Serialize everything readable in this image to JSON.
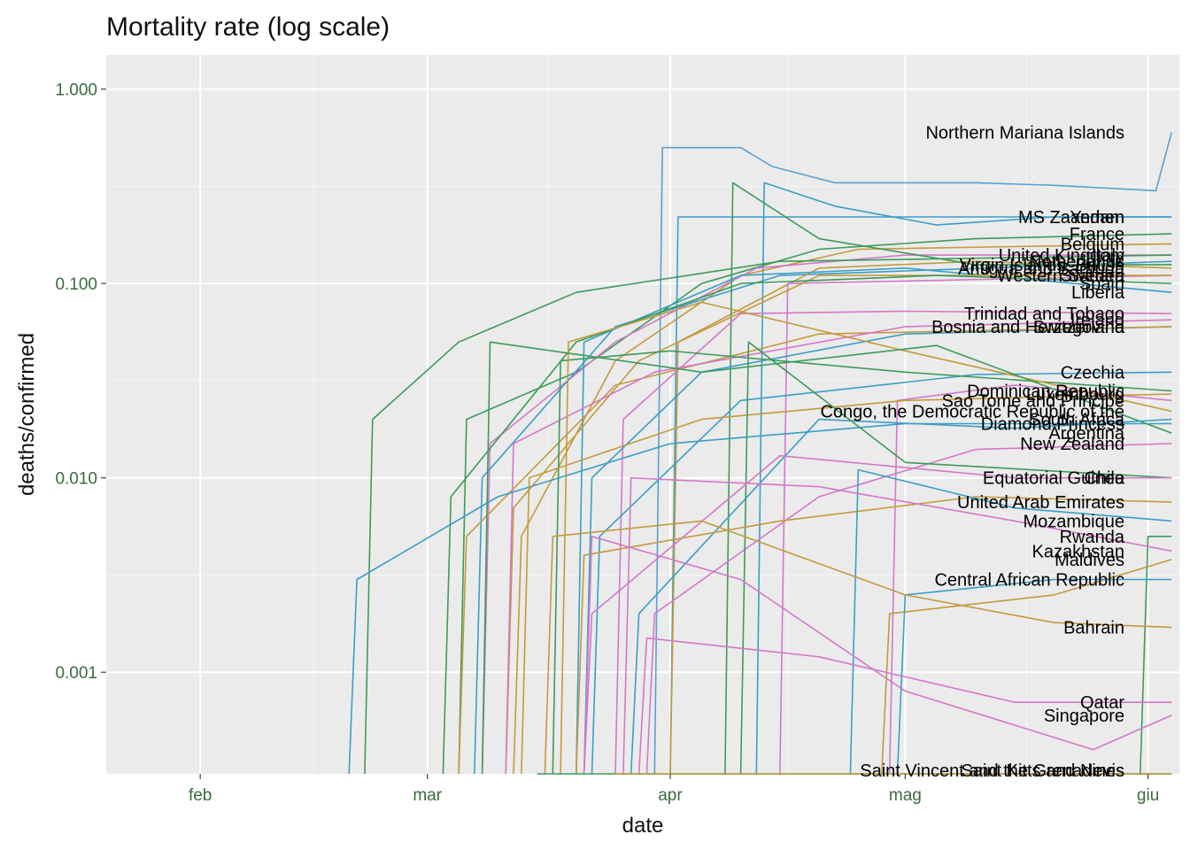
{
  "chart_data": {
    "type": "line",
    "title": "Mortality rate (log scale)",
    "xlabel": "date",
    "ylabel": "deaths/confirmed",
    "y_scale": "log10",
    "ylim": [
      0.0003,
      1.5
    ],
    "xlim": [
      "2020-01-20",
      "2020-06-05"
    ],
    "grid": true,
    "legend": "none",
    "x_ticks": [
      {
        "date": "2020-02-01",
        "label": "feb"
      },
      {
        "date": "2020-03-01",
        "label": "mar"
      },
      {
        "date": "2020-04-01",
        "label": "apr"
      },
      {
        "date": "2020-05-01",
        "label": "mag"
      },
      {
        "date": "2020-06-01",
        "label": "giu"
      }
    ],
    "y_ticks": [
      {
        "value": 1,
        "label": "1.000"
      },
      {
        "value": 0.1,
        "label": "0.100"
      },
      {
        "value": 0.01,
        "label": "0.010"
      },
      {
        "value": 0.001,
        "label": "0.001"
      }
    ],
    "palette": [
      "#c49a3c",
      "#3d9b5a",
      "#3a9ec7",
      "#d478c8",
      "#5aa0d0",
      "#c98e3a"
    ],
    "series": [
      {
        "name": "Northern Mariana Islands",
        "color": "#5aa0d0",
        "points": [
          [
            "2020-03-30",
            0.0003
          ],
          [
            "2020-03-31",
            0.5
          ],
          [
            "2020-04-10",
            0.5
          ],
          [
            "2020-04-14",
            0.4
          ],
          [
            "2020-04-22",
            0.33
          ],
          [
            "2020-05-10",
            0.33
          ],
          [
            "2020-05-20",
            0.32
          ],
          [
            "2020-06-02",
            0.3
          ],
          [
            "2020-06-04",
            0.6
          ]
        ]
      },
      {
        "name": "Yemen",
        "color": "#3a9ec7",
        "points": [
          [
            "2020-04-12",
            0.0003
          ],
          [
            "2020-04-13",
            0.33
          ],
          [
            "2020-04-22",
            0.25
          ],
          [
            "2020-05-05",
            0.2
          ],
          [
            "2020-05-20",
            0.22
          ],
          [
            "2020-06-04",
            0.22
          ]
        ]
      },
      {
        "name": "MS Zaandam",
        "color": "#3a9ec7",
        "points": [
          [
            "2020-04-01",
            0.0003
          ],
          [
            "2020-04-02",
            0.22
          ],
          [
            "2020-06-04",
            0.22
          ]
        ]
      },
      {
        "name": "France",
        "color": "#3d9b5a",
        "points": [
          [
            "2020-03-05",
            0.0003
          ],
          [
            "2020-03-06",
            0.02
          ],
          [
            "2020-03-20",
            0.035
          ],
          [
            "2020-04-05",
            0.1
          ],
          [
            "2020-04-20",
            0.15
          ],
          [
            "2020-05-10",
            0.17
          ],
          [
            "2020-06-04",
            0.18
          ]
        ]
      },
      {
        "name": "Belgium",
        "color": "#c49a3c",
        "points": [
          [
            "2020-03-12",
            0.0003
          ],
          [
            "2020-03-13",
            0.005
          ],
          [
            "2020-03-25",
            0.04
          ],
          [
            "2020-04-10",
            0.11
          ],
          [
            "2020-04-25",
            0.15
          ],
          [
            "2020-06-04",
            0.16
          ]
        ]
      },
      {
        "name": "United Kingdom",
        "color": "#d478c8",
        "points": [
          [
            "2020-03-08",
            0.0003
          ],
          [
            "2020-03-09",
            0.015
          ],
          [
            "2020-03-25",
            0.05
          ],
          [
            "2020-04-12",
            0.12
          ],
          [
            "2020-05-01",
            0.14
          ],
          [
            "2020-06-04",
            0.14
          ]
        ]
      },
      {
        "name": "Netherlands",
        "color": "#3a9ec7",
        "points": [
          [
            "2020-03-07",
            0.0003
          ],
          [
            "2020-03-08",
            0.01
          ],
          [
            "2020-03-25",
            0.06
          ],
          [
            "2020-04-15",
            0.11
          ],
          [
            "2020-06-04",
            0.13
          ]
        ]
      },
      {
        "name": "Italy",
        "color": "#3d9b5a",
        "points": [
          [
            "2020-02-22",
            0.0003
          ],
          [
            "2020-02-23",
            0.02
          ],
          [
            "2020-03-05",
            0.05
          ],
          [
            "2020-03-20",
            0.09
          ],
          [
            "2020-04-15",
            0.13
          ],
          [
            "2020-06-04",
            0.14
          ]
        ]
      },
      {
        "name": "Antigua and Barbuda",
        "color": "#c49a3c",
        "points": [
          [
            "2020-04-01",
            0.0003
          ],
          [
            "2020-04-02",
            0.05
          ],
          [
            "2020-04-20",
            0.12
          ],
          [
            "2020-05-10",
            0.13
          ],
          [
            "2020-06-04",
            0.12
          ]
        ]
      },
      {
        "name": "Western Sahara",
        "color": "#d478c8",
        "points": [
          [
            "2020-04-15",
            0.0003
          ],
          [
            "2020-04-16",
            0.1
          ],
          [
            "2020-06-04",
            0.11
          ]
        ]
      },
      {
        "name": "Liberia",
        "color": "#3a9ec7",
        "points": [
          [
            "2020-03-20",
            0.0003
          ],
          [
            "2020-03-21",
            0.05
          ],
          [
            "2020-04-10",
            0.11
          ],
          [
            "2020-05-01",
            0.12
          ],
          [
            "2020-06-04",
            0.09
          ]
        ]
      },
      {
        "name": "Virgin Islands, British",
        "color": "#3d9b5a",
        "points": [
          [
            "2020-04-08",
            0.0003
          ],
          [
            "2020-04-09",
            0.33
          ],
          [
            "2020-04-20",
            0.17
          ],
          [
            "2020-05-10",
            0.125
          ],
          [
            "2020-06-04",
            0.125
          ]
        ]
      },
      {
        "name": "Sweden",
        "color": "#c49a3c",
        "points": [
          [
            "2020-03-11",
            0.0003
          ],
          [
            "2020-03-12",
            0.007
          ],
          [
            "2020-03-28",
            0.04
          ],
          [
            "2020-04-20",
            0.11
          ],
          [
            "2020-06-04",
            0.11
          ]
        ]
      },
      {
        "name": "Trinidad and Tobago",
        "color": "#d478c8",
        "points": [
          [
            "2020-03-25",
            0.0003
          ],
          [
            "2020-03-26",
            0.02
          ],
          [
            "2020-04-10",
            0.07
          ],
          [
            "2020-05-01",
            0.072
          ],
          [
            "2020-06-04",
            0.07
          ]
        ]
      },
      {
        "name": "Bosnia and Herzegovina",
        "color": "#3a9ec7",
        "points": [
          [
            "2020-03-21",
            0.0003
          ],
          [
            "2020-03-22",
            0.01
          ],
          [
            "2020-04-05",
            0.035
          ],
          [
            "2020-05-01",
            0.055
          ],
          [
            "2020-06-04",
            0.06
          ]
        ]
      },
      {
        "name": "Spain",
        "color": "#3d9b5a",
        "points": [
          [
            "2020-03-03",
            0.0003
          ],
          [
            "2020-03-04",
            0.008
          ],
          [
            "2020-03-20",
            0.05
          ],
          [
            "2020-04-10",
            0.1
          ],
          [
            "2020-05-05",
            0.11
          ],
          [
            "2020-06-04",
            0.1
          ]
        ]
      },
      {
        "name": "Switzerland",
        "color": "#c49a3c",
        "points": [
          [
            "2020-03-05",
            0.0003
          ],
          [
            "2020-03-06",
            0.005
          ],
          [
            "2020-03-25",
            0.03
          ],
          [
            "2020-04-20",
            0.055
          ],
          [
            "2020-06-04",
            0.06
          ]
        ]
      },
      {
        "name": "Ireland",
        "color": "#d478c8",
        "points": [
          [
            "2020-03-11",
            0.0003
          ],
          [
            "2020-03-12",
            0.015
          ],
          [
            "2020-03-30",
            0.035
          ],
          [
            "2020-05-01",
            0.06
          ],
          [
            "2020-06-04",
            0.065
          ]
        ]
      },
      {
        "name": "Czechia",
        "color": "#3a9ec7",
        "points": [
          [
            "2020-03-22",
            0.0003
          ],
          [
            "2020-03-23",
            0.005
          ],
          [
            "2020-04-10",
            0.025
          ],
          [
            "2020-05-10",
            0.034
          ],
          [
            "2020-06-04",
            0.035
          ]
        ]
      },
      {
        "name": "Dominican Republic",
        "color": "#3d9b5a",
        "points": [
          [
            "2020-03-17",
            0.0003
          ],
          [
            "2020-03-18",
            0.04
          ],
          [
            "2020-04-01",
            0.045
          ],
          [
            "2020-05-01",
            0.035
          ],
          [
            "2020-06-04",
            0.028
          ]
        ]
      },
      {
        "name": "Sao Tome and Principe",
        "color": "#d478c8",
        "points": [
          [
            "2020-04-29",
            0.0003
          ],
          [
            "2020-04-30",
            0.025
          ],
          [
            "2020-05-15",
            0.03
          ],
          [
            "2020-06-04",
            0.025
          ]
        ]
      },
      {
        "name": "Congo, the Democratic Republic of the",
        "color": "#c49a3c",
        "points": [
          [
            "2020-03-18",
            0.0003
          ],
          [
            "2020-03-19",
            0.05
          ],
          [
            "2020-04-05",
            0.08
          ],
          [
            "2020-05-01",
            0.045
          ],
          [
            "2020-06-04",
            0.022
          ]
        ]
      },
      {
        "name": "Diamond Princess",
        "color": "#3a9ec7",
        "points": [
          [
            "2020-02-20",
            0.0003
          ],
          [
            "2020-02-21",
            0.003
          ],
          [
            "2020-03-10",
            0.008
          ],
          [
            "2020-04-01",
            0.015
          ],
          [
            "2020-05-01",
            0.019
          ],
          [
            "2020-06-04",
            0.019
          ]
        ]
      },
      {
        "name": "Argentina",
        "color": "#3d9b5a",
        "points": [
          [
            "2020-03-08",
            0.0003
          ],
          [
            "2020-03-09",
            0.05
          ],
          [
            "2020-04-05",
            0.035
          ],
          [
            "2020-05-05",
            0.048
          ],
          [
            "2020-06-04",
            0.017
          ]
        ]
      },
      {
        "name": "New Zealand",
        "color": "#d478c8",
        "points": [
          [
            "2020-03-29",
            0.0003
          ],
          [
            "2020-03-30",
            0.002
          ],
          [
            "2020-04-20",
            0.008
          ],
          [
            "2020-05-10",
            0.014
          ],
          [
            "2020-06-04",
            0.015
          ]
        ]
      },
      {
        "name": "Luxembourg",
        "color": "#c49a3c",
        "points": [
          [
            "2020-03-13",
            0.0003
          ],
          [
            "2020-03-14",
            0.01
          ],
          [
            "2020-04-05",
            0.02
          ],
          [
            "2020-05-01",
            0.025
          ],
          [
            "2020-06-04",
            0.027
          ]
        ]
      },
      {
        "name": "South Africa",
        "color": "#3a9ec7",
        "points": [
          [
            "2020-03-27",
            0.0003
          ],
          [
            "2020-03-28",
            0.002
          ],
          [
            "2020-04-20",
            0.02
          ],
          [
            "2020-05-15",
            0.018
          ],
          [
            "2020-06-04",
            0.02
          ]
        ]
      },
      {
        "name": "Equatorial Guinea",
        "color": "#3d9b5a",
        "points": [
          [
            "2020-04-10",
            0.0003
          ],
          [
            "2020-04-11",
            0.05
          ],
          [
            "2020-05-01",
            0.012
          ],
          [
            "2020-06-04",
            0.01
          ]
        ]
      },
      {
        "name": "Chile",
        "color": "#d478c8",
        "points": [
          [
            "2020-03-21",
            0.0003
          ],
          [
            "2020-03-22",
            0.002
          ],
          [
            "2020-04-15",
            0.013
          ],
          [
            "2020-05-15",
            0.01
          ],
          [
            "2020-06-04",
            0.01
          ]
        ]
      },
      {
        "name": "United Arab Emirates",
        "color": "#c49a3c",
        "points": [
          [
            "2020-03-20",
            0.0003
          ],
          [
            "2020-03-21",
            0.004
          ],
          [
            "2020-04-15",
            0.006
          ],
          [
            "2020-05-10",
            0.008
          ],
          [
            "2020-06-04",
            0.0075
          ]
        ]
      },
      {
        "name": "Mozambique",
        "color": "#3a9ec7",
        "points": [
          [
            "2020-04-24",
            0.0003
          ],
          [
            "2020-04-25",
            0.011
          ],
          [
            "2020-05-15",
            0.007
          ],
          [
            "2020-06-04",
            0.006
          ]
        ]
      },
      {
        "name": "Rwanda",
        "color": "#3d9b5a",
        "points": [
          [
            "2020-05-31",
            0.0003
          ],
          [
            "2020-06-01",
            0.005
          ],
          [
            "2020-06-04",
            0.005
          ]
        ]
      },
      {
        "name": "Kazakhstan",
        "color": "#d478c8",
        "points": [
          [
            "2020-03-26",
            0.0003
          ],
          [
            "2020-03-27",
            0.01
          ],
          [
            "2020-04-20",
            0.009
          ],
          [
            "2020-05-15",
            0.006
          ],
          [
            "2020-06-04",
            0.0042
          ]
        ]
      },
      {
        "name": "Maldives",
        "color": "#c49a3c",
        "points": [
          [
            "2020-04-28",
            0.0003
          ],
          [
            "2020-04-29",
            0.002
          ],
          [
            "2020-05-20",
            0.0025
          ],
          [
            "2020-06-04",
            0.0038
          ]
        ]
      },
      {
        "name": "Central African Republic",
        "color": "#3a9ec7",
        "points": [
          [
            "2020-04-30",
            0.0003
          ],
          [
            "2020-05-01",
            0.0025
          ],
          [
            "2020-05-20",
            0.003
          ],
          [
            "2020-06-04",
            0.003
          ]
        ]
      },
      {
        "name": "Bahrain",
        "color": "#c49a3c",
        "points": [
          [
            "2020-03-16",
            0.0003
          ],
          [
            "2020-03-17",
            0.005
          ],
          [
            "2020-04-05",
            0.006
          ],
          [
            "2020-05-01",
            0.0025
          ],
          [
            "2020-05-20",
            0.0018
          ],
          [
            "2020-06-04",
            0.0017
          ]
        ]
      },
      {
        "name": "Qatar",
        "color": "#d478c8",
        "points": [
          [
            "2020-03-28",
            0.0003
          ],
          [
            "2020-03-29",
            0.0015
          ],
          [
            "2020-04-20",
            0.0012
          ],
          [
            "2020-05-15",
            0.0007
          ],
          [
            "2020-06-04",
            0.0007
          ]
        ]
      },
      {
        "name": "Singapore",
        "color": "#d478c8",
        "points": [
          [
            "2020-03-21",
            0.0003
          ],
          [
            "2020-03-22",
            0.005
          ],
          [
            "2020-04-10",
            0.003
          ],
          [
            "2020-05-01",
            0.0008
          ],
          [
            "2020-05-25",
            0.0004
          ],
          [
            "2020-06-04",
            0.0006
          ]
        ]
      },
      {
        "name": "Saint Vincent and the Grenadines",
        "color": "#3d9b5a",
        "points": [
          [
            "2020-03-15",
            0.0003
          ],
          [
            "2020-06-04",
            0.0003
          ]
        ]
      },
      {
        "name": "Saint Kitts and Nevis",
        "color": "#c49a3c",
        "points": [
          [
            "2020-03-25",
            0.0003
          ],
          [
            "2020-06-04",
            0.0003
          ]
        ]
      }
    ]
  }
}
